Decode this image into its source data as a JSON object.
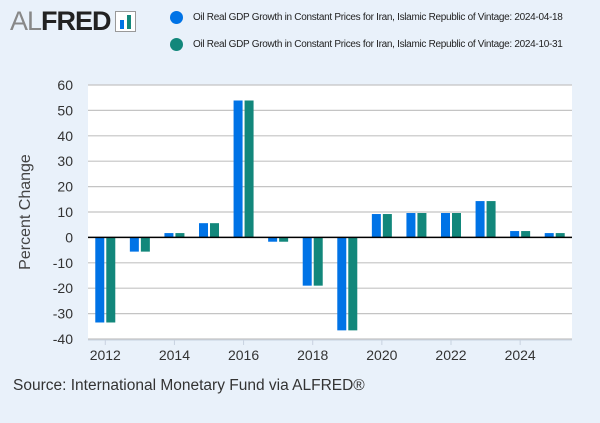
{
  "logo_text": "ALFRED",
  "source": "Source: International Monetary Fund via ALFRED®",
  "chart_data": {
    "type": "bar",
    "title": "",
    "xlabel": "",
    "ylabel": "Percent Change",
    "ylim": [
      -40,
      60
    ],
    "yticks": [
      60,
      50,
      40,
      30,
      20,
      10,
      0,
      -10,
      -20,
      -30,
      -40
    ],
    "categories": [
      "2012",
      "2013",
      "2014",
      "2015",
      "2016",
      "2017",
      "2018",
      "2019",
      "2020",
      "2021",
      "2022",
      "2023",
      "2024",
      "2025"
    ],
    "xtick_labels": [
      "2012",
      "2014",
      "2016",
      "2018",
      "2020",
      "2022",
      "2024"
    ],
    "grid": true,
    "legend_position": "top",
    "series": [
      {
        "name": "Oil Real GDP Growth in Constant Prices for Iran, Islamic Republic of Vintage: 2024-04-18",
        "color": "#0073e6",
        "values": [
          -33.5,
          -5.6,
          1.7,
          5.6,
          53.9,
          -1.7,
          -19.0,
          -36.6,
          9.2,
          9.6,
          9.6,
          14.3,
          2.5,
          1.7
        ]
      },
      {
        "name": "Oil Real GDP Growth in Constant Prices for Iran, Islamic Republic of Vintage: 2024-10-31",
        "color": "#12877b",
        "values": [
          -33.5,
          -5.6,
          1.7,
          5.6,
          53.9,
          -1.7,
          -19.0,
          -36.6,
          9.2,
          9.6,
          9.6,
          14.3,
          2.5,
          1.7
        ]
      }
    ]
  }
}
